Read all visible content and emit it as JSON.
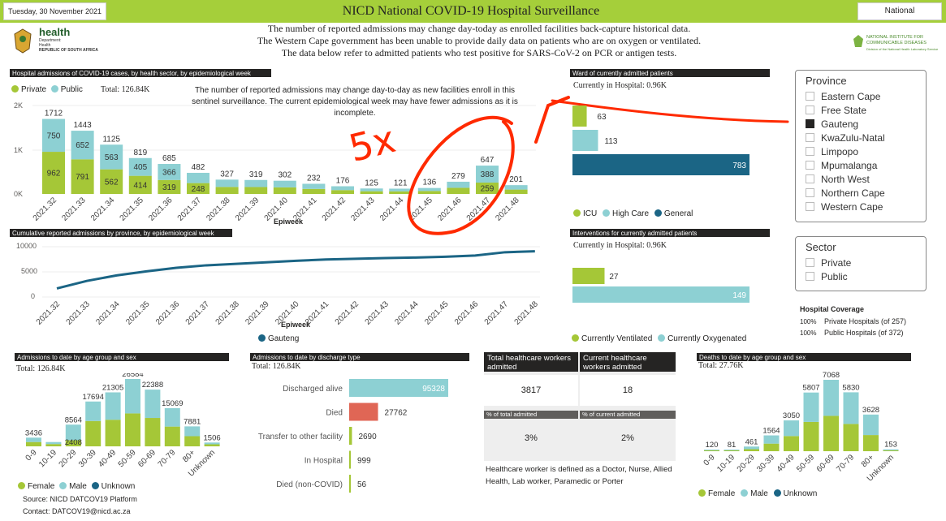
{
  "header": {
    "date": "Tuesday, 30 November 2021",
    "title": "NICD National COVID-19 Hospital Surveillance",
    "scope": "National",
    "notice_lines": [
      "The number of reported admissions may change day-today as enrolled facilities back-capture historical data.",
      "The Western Cape government has been unable to provide daily data on patients who are on oxygen or ventilated.",
      "The data below refer to admitted patients who test positive for SARS-CoV-2 on PCR or antigen tests."
    ],
    "health_logo": {
      "line1": "health",
      "line2": "Department:",
      "line3": "Health",
      "line4": "REPUBLIC OF SOUTH AFRICA"
    },
    "nicd_logo": {
      "line1": "NATIONAL INSTITUTE FOR",
      "line2": "COMMUNICABLE DISEASES",
      "line3": "Division of the National Health Laboratory Service"
    }
  },
  "admissions_panel": {
    "title": "Hospital admissions of COVID-19 cases, by health sector, by epidemiological week",
    "legend_private": "Private",
    "legend_public": "Public",
    "total": "Total: 126.84K",
    "note": "The number of reported admissions may change day-to-day as new facilities enroll in this sentinel surveillance. The current epidemiological week may have fewer admissions as it is incomplete.",
    "xlabel": "Epiweek",
    "yticks": [
      "2K",
      "1K",
      "0K"
    ]
  },
  "annotation": {
    "text": "5x"
  },
  "chart_data": [
    {
      "type": "bar",
      "title": "Hospital admissions of COVID-19 cases, by health sector, by epidemiological week",
      "xlabel": "Epiweek",
      "ylim": [
        0,
        2000
      ],
      "categories": [
        "2021.32",
        "2021.33",
        "2021.34",
        "2021.35",
        "2021.36",
        "2021.37",
        "2021.38",
        "2021.39",
        "2021.40",
        "2021.41",
        "2021.42",
        "2021.43",
        "2021.44",
        "2021.45",
        "2021.46",
        "2021.47",
        "2021.48"
      ],
      "totals": [
        1712,
        1443,
        1125,
        819,
        685,
        482,
        327,
        319,
        302,
        232,
        176,
        125,
        121,
        136,
        279,
        647,
        201
      ],
      "series": [
        {
          "name": "Private",
          "color": "#a5c737",
          "values": [
            962,
            791,
            562,
            414,
            319,
            248,
            160,
            158,
            150,
            115,
            88,
            62,
            60,
            68,
            140,
            259,
            100
          ],
          "labels": [
            "962",
            "791",
            "562",
            "414",
            "319",
            "248",
            "",
            "",
            "",
            "",
            "",
            "",
            "",
            "",
            "",
            "259",
            ""
          ]
        },
        {
          "name": "Public",
          "color": "#8dd0d3",
          "values": [
            750,
            652,
            563,
            405,
            366,
            234,
            167,
            161,
            152,
            117,
            88,
            63,
            61,
            68,
            139,
            388,
            101
          ],
          "labels": [
            "750",
            "652",
            "563",
            "405",
            "366",
            "",
            "",
            "",
            "",
            "",
            "",
            "",
            "",
            "",
            "",
            "388",
            ""
          ]
        }
      ]
    },
    {
      "type": "line",
      "title": "Cumulative reported admissions by province, by epidemiological week",
      "xlabel": "Epiweek",
      "ylim": [
        0,
        10000
      ],
      "yticks": [
        "10000",
        "5000",
        "0"
      ],
      "categories": [
        "2021.32",
        "2021.33",
        "2021.34",
        "2021.35",
        "2021.36",
        "2021.37",
        "2021.38",
        "2021.39",
        "2021.40",
        "2021.41",
        "2021.42",
        "2021.43",
        "2021.44",
        "2021.45",
        "2021.46",
        "2021.47",
        "2021.48"
      ],
      "series": [
        {
          "name": "Gauteng",
          "color": "#1b6585",
          "values": [
            1700,
            3200,
            4300,
            5100,
            5800,
            6300,
            6600,
            6900,
            7200,
            7450,
            7600,
            7750,
            7850,
            8000,
            8250,
            8900,
            9100
          ]
        }
      ]
    },
    {
      "type": "bar",
      "title": "Ward of currently admitted patients",
      "categories": [
        "ICU",
        "High Care",
        "General"
      ],
      "values": [
        63,
        113,
        783
      ],
      "colors": [
        "#a5c737",
        "#8dd0d3",
        "#1b6585"
      ]
    },
    {
      "type": "bar",
      "title": "Interventions for currently admitted patients",
      "categories": [
        "Currently Ventilated",
        "Currently Oxygenated"
      ],
      "values": [
        27,
        149
      ],
      "colors": [
        "#a5c737",
        "#8dd0d3"
      ]
    },
    {
      "type": "bar",
      "title": "Admissions to date by age group and sex",
      "categories": [
        "0-9",
        "10-19",
        "20-29",
        "30-39",
        "40-49",
        "50-59",
        "60-69",
        "70-79",
        "80+",
        "Unknown"
      ],
      "series": [
        {
          "name": "Female",
          "color": "#a5c737",
          "values": [
            1700,
            900,
            2408,
            10000,
            10500,
            13000,
            11200,
            7800,
            4000,
            800
          ]
        },
        {
          "name": "Male",
          "color": "#8dd0d3",
          "values": [
            1736,
            800,
            6156,
            7694,
            10805,
            13584,
            11188,
            7269,
            3881,
            706
          ]
        }
      ],
      "totals": [
        3436,
        1700,
        8564,
        17694,
        21305,
        26584,
        22388,
        15069,
        7881,
        1506
      ],
      "labels": [
        "3436",
        "",
        "8564",
        "17694",
        "21305",
        "26584",
        "22388",
        "15069",
        "7881",
        "1506"
      ],
      "inner_label": {
        "index": 2,
        "text": "2408"
      }
    },
    {
      "type": "bar",
      "title": "Admissions to date by discharge type",
      "categories": [
        "Discharged alive",
        "Died",
        "Transfer to other facility",
        "In Hospital",
        "Died (non-COVID)"
      ],
      "values": [
        95328,
        27762,
        2690,
        999,
        56
      ],
      "colors": [
        "#8dd0d3",
        "#e06655",
        "#a5c737",
        "#a5c737",
        "#a5c737"
      ]
    },
    {
      "type": "bar",
      "title": "Deaths to date by age group and sex",
      "categories": [
        "0-9",
        "10-19",
        "20-29",
        "30-39",
        "40-49",
        "50-59",
        "60-69",
        "70-79",
        "80+",
        "Unknown"
      ],
      "series": [
        {
          "name": "Female",
          "color": "#a5c737",
          "values": [
            40,
            30,
            200,
            750,
            1500,
            2900,
            3500,
            2700,
            1600,
            50
          ]
        },
        {
          "name": "Male",
          "color": "#8dd0d3",
          "values": [
            80,
            51,
            261,
            814,
            1550,
            2907,
            3568,
            3130,
            2028,
            103
          ]
        }
      ],
      "totals": [
        120,
        81,
        461,
        1564,
        3050,
        5807,
        7068,
        5830,
        3628,
        153
      ],
      "labels": [
        "120",
        "81",
        "461",
        "1564",
        "3050",
        "5807",
        "7068",
        "5830",
        "3628",
        "153"
      ]
    }
  ],
  "cumulative_panel": {
    "title": "Cumulative reported admissions by province, by epidemiological week",
    "xlabel": "Epiweek",
    "legend": "Gauteng"
  },
  "ward_panel": {
    "title": "Ward of currently admitted patients",
    "current": "Currently in Hospital:",
    "current_value": "0.96K",
    "labels": [
      "63",
      "113",
      "783"
    ],
    "legend": [
      "ICU",
      "High Care",
      "General"
    ]
  },
  "interventions_panel": {
    "title": "Interventions for currently admitted patients",
    "current": "Currently in Hospital:",
    "current_value": "0.96K",
    "labels": [
      "27",
      "149"
    ],
    "legend": [
      "Currently Ventilated",
      "Currently Oxygenated"
    ]
  },
  "province_slicer": {
    "title": "Province",
    "items": [
      {
        "label": "Eastern Cape",
        "checked": false
      },
      {
        "label": "Free State",
        "checked": false
      },
      {
        "label": "Gauteng",
        "checked": true
      },
      {
        "label": "KwaZulu-Natal",
        "checked": false
      },
      {
        "label": "Limpopo",
        "checked": false
      },
      {
        "label": "Mpumalanga",
        "checked": false
      },
      {
        "label": "North West",
        "checked": false
      },
      {
        "label": "Northern Cape",
        "checked": false
      },
      {
        "label": "Western Cape",
        "checked": false
      }
    ]
  },
  "sector_slicer": {
    "title": "Sector",
    "items": [
      {
        "label": "Private",
        "checked": false
      },
      {
        "label": "Public",
        "checked": false
      }
    ]
  },
  "coverage": {
    "title": "Hospital Coverage",
    "rows": [
      {
        "pct": "100%",
        "text": "Private Hospitals (of 257)"
      },
      {
        "pct": "100%",
        "text": "Public Hospitals (of 372)"
      }
    ]
  },
  "age_panel": {
    "title": "Admissions to date by age group and sex",
    "total": "Total:",
    "total_value": "126.84K",
    "legend": [
      "Female",
      "Male",
      "Unknown"
    ],
    "source": "Source: NICD DATCOV19 Platform",
    "contact": "Contact: DATCOV19@nicd.ac.za"
  },
  "discharge_panel": {
    "title": "Admissions to date by discharge type",
    "total": "Total:",
    "total_value": "126.84K",
    "value_labels": [
      "95328",
      "27762",
      "2690",
      "999",
      "56"
    ]
  },
  "hcw_panel": {
    "total_header": "Total healthcare workers admitted",
    "current_header": "Current healthcare workers admitted",
    "total_value": "3817",
    "current_value": "18",
    "pct_total_label": "% of total admitted",
    "pct_current_label": "% of current admitted",
    "pct_total_value": "3%",
    "pct_current_value": "2%",
    "definition": "Healthcare worker is defined as a Doctor, Nurse, Allied Health, Lab worker, Paramedic or Porter"
  },
  "deaths_panel": {
    "title": "Deaths to date by age group and sex",
    "total": "Total:",
    "total_value": "27.76K",
    "legend": [
      "Female",
      "Male",
      "Unknown"
    ]
  },
  "colors": {
    "green": "#a5c737",
    "teal": "#8dd0d3",
    "navy": "#1b6585",
    "red": "#e06655",
    "header": "#a5cf3a",
    "annotation": "#ff2a00"
  }
}
